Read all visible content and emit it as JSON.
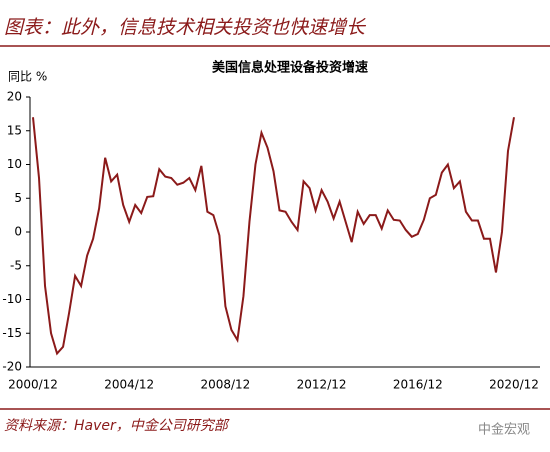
{
  "header": {
    "title": "图表：此外，信息技术相关投资也快速增长"
  },
  "footer": {
    "source": "资料来源：Haver，中金公司研究部",
    "watermark": "中金宏观"
  },
  "chart_data": {
    "type": "line",
    "title": "美国信息处理设备投资增速",
    "y_label": "同比 %",
    "categories": [
      "2000/12",
      null,
      null,
      null,
      null,
      null,
      null,
      null,
      null,
      null,
      null,
      null,
      null,
      null,
      null,
      null,
      "2004/12",
      null,
      null,
      null,
      null,
      null,
      null,
      null,
      null,
      null,
      null,
      null,
      null,
      null,
      null,
      null,
      "2008/12",
      null,
      null,
      null,
      null,
      null,
      null,
      null,
      null,
      null,
      null,
      null,
      null,
      null,
      null,
      null,
      "2012/12",
      null,
      null,
      null,
      null,
      null,
      null,
      null,
      null,
      null,
      null,
      null,
      null,
      null,
      null,
      null,
      "2016/12",
      null,
      null,
      null,
      null,
      null,
      null,
      null,
      null,
      null,
      null,
      null,
      null,
      null,
      null,
      null,
      "2020/12"
    ],
    "series": [
      {
        "color": "#8b1a1a",
        "values": [
          17,
          8,
          -8,
          -15,
          -18,
          -17,
          -12,
          -6.5,
          -8,
          -3.5,
          -1,
          3.5,
          11,
          7.5,
          8.5,
          4,
          1.5,
          4,
          2.8,
          5.2,
          5.3,
          9.3,
          8.2,
          8,
          7,
          7.3,
          8,
          6.2,
          9.8,
          3,
          2.5,
          -0.5,
          -11,
          -14.5,
          -16,
          -9.5,
          1.5,
          10,
          14.7,
          12.5,
          9,
          3.2,
          3,
          1.5,
          0.3,
          7.5,
          6.5,
          3.2,
          6.2,
          4.5,
          2,
          4.5,
          1.5,
          -1.5,
          3,
          1.2,
          2.5,
          2.5,
          0.5,
          3.2,
          1.8,
          1.7,
          0.3,
          -0.7,
          -0.3,
          1.8,
          5,
          5.5,
          8.8,
          10,
          6.5,
          7.5,
          3,
          1.7,
          1.7,
          -1,
          -1,
          -6,
          0,
          12,
          17
        ]
      }
    ],
    "ylim": [
      -20,
      20
    ],
    "yticks": [
      20,
      15,
      10,
      5,
      0,
      -5,
      -10,
      -15,
      -20
    ]
  }
}
